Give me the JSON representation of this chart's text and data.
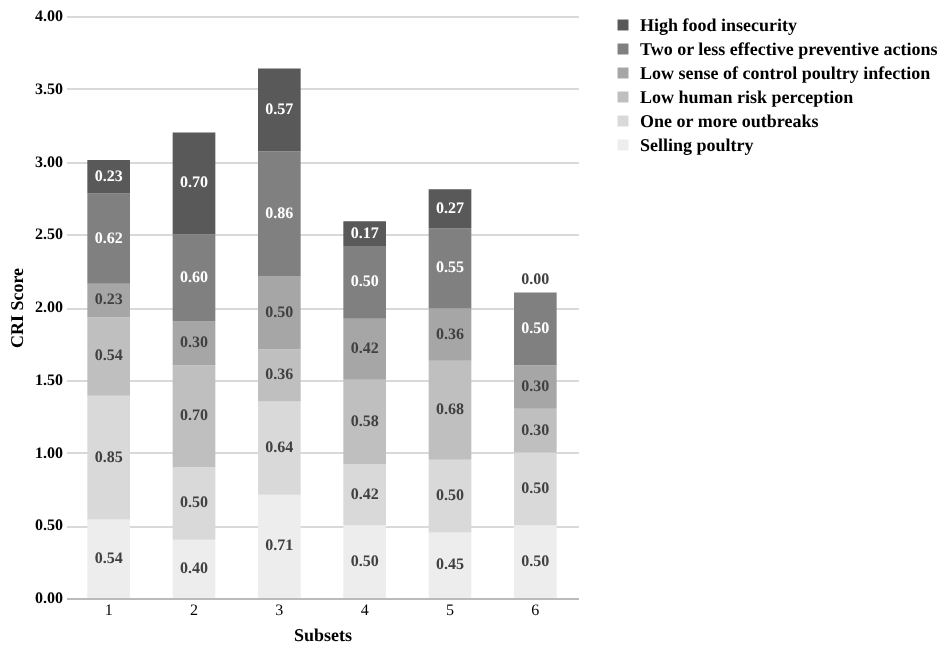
{
  "chart_data": {
    "type": "bar",
    "stacked": true,
    "xlabel": "Subsets",
    "ylabel": "CRI Score",
    "categories": [
      "1",
      "2",
      "3",
      "4",
      "5",
      "6"
    ],
    "series": [
      {
        "name": "Selling poultry",
        "color": "#ededed",
        "values": [
          0.54,
          0.4,
          0.71,
          0.5,
          0.45,
          0.5
        ],
        "value_labels": [
          "0.54",
          "0.40",
          "0.71",
          "0.50",
          "0.45",
          "0.50"
        ]
      },
      {
        "name": "One or more outbreaks",
        "color": "#d9d9d9",
        "values": [
          0.85,
          0.5,
          0.64,
          0.42,
          0.5,
          0.5
        ],
        "value_labels": [
          "0.85",
          "0.50",
          "0.64",
          "0.42",
          "0.50",
          "0.50"
        ]
      },
      {
        "name": "Low human risk perception",
        "color": "#bfbfbf",
        "values": [
          0.54,
          0.7,
          0.36,
          0.58,
          0.68,
          0.3
        ],
        "value_labels": [
          "0.54",
          "0.70",
          "0.36",
          "0.58",
          "0.68",
          "0.30"
        ]
      },
      {
        "name": "Low sense of control poultry infection",
        "color": "#a6a6a6",
        "values": [
          0.23,
          0.3,
          0.5,
          0.42,
          0.36,
          0.3
        ],
        "value_labels": [
          "0.23",
          "0.30",
          "0.50",
          "0.42",
          "0.36",
          "0.30"
        ]
      },
      {
        "name": "Two or less effective preventive actions",
        "color": "#808080",
        "values": [
          0.62,
          0.6,
          0.86,
          0.5,
          0.55,
          0.5
        ],
        "value_labels": [
          "0.62",
          "0.60",
          "0.86",
          "0.50",
          "0.55",
          "0.50"
        ]
      },
      {
        "name": "High food insecurity",
        "color": "#595959",
        "values": [
          0.23,
          0.7,
          0.57,
          0.17,
          0.27,
          0.0
        ],
        "value_labels": [
          "0.23",
          "0.70",
          "0.57",
          "0.17",
          "0.27",
          "0.00"
        ]
      }
    ],
    "ylim": [
      0,
      4
    ],
    "yticks": [
      {
        "value": 0,
        "label": "0.00"
      },
      {
        "value": 0.5,
        "label": "0.50"
      },
      {
        "value": 1,
        "label": "1.00"
      },
      {
        "value": 1.5,
        "label": "1.50"
      },
      {
        "value": 2,
        "label": "2.00"
      },
      {
        "value": 2.5,
        "label": "2.50"
      },
      {
        "value": 3,
        "label": "3.00"
      },
      {
        "value": 3.5,
        "label": "3.50"
      },
      {
        "value": 4,
        "label": "4.00"
      }
    ],
    "grid": "y",
    "legend": "right"
  }
}
